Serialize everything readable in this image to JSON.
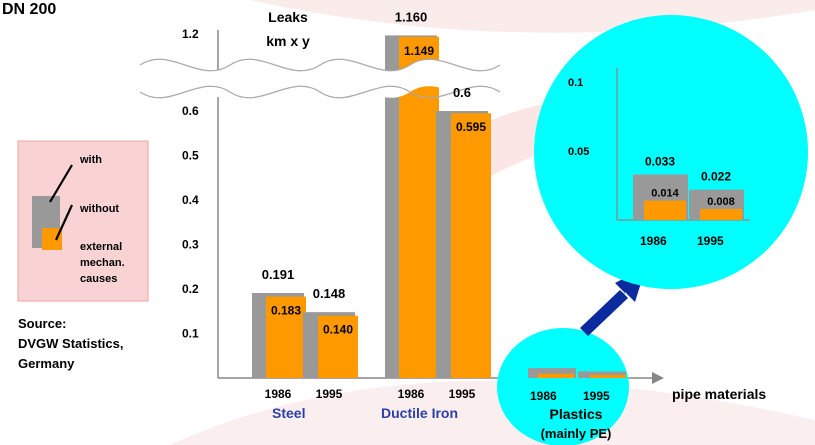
{
  "page_title": "DN 200",
  "y_axis_label_line1": "Leaks",
  "y_axis_label_line2": "km x y",
  "x_axis_label": "pipe materials",
  "legend": {
    "with_label": "with",
    "without_label": "without",
    "causes_line1": "external",
    "causes_line2": "mechan.",
    "causes_line3": "causes"
  },
  "source": {
    "line1": "Source:",
    "line2": "DVGW Statistics,",
    "line3": "Germany"
  },
  "colors": {
    "with_bar": "#999999",
    "without_bar": "#ff9900",
    "highlight_circle": "#00ffff",
    "arrow": "#0a2a9e",
    "material_label": "#2b3fa8",
    "legend_box": "#f9d3d3"
  },
  "chart_data": [
    {
      "type": "bar",
      "title": "",
      "xlabel": "pipe materials",
      "ylabel": "Leaks km x y",
      "ylim": [
        0,
        1.2
      ],
      "axis_break": [
        0.6,
        1.2
      ],
      "yticks": [
        "0.1",
        "0.2",
        "0.3",
        "0.4",
        "0.5",
        "0.6",
        "1.2"
      ],
      "groups": [
        {
          "material": "Steel",
          "categories": [
            "1986",
            "1995"
          ],
          "series": [
            {
              "name": "with",
              "values": [
                0.191,
                0.148
              ]
            },
            {
              "name": "without",
              "values": [
                0.183,
                0.14
              ]
            }
          ],
          "labels_with": [
            "0.191",
            "0.148"
          ],
          "labels_without": [
            "0.183",
            "0.140"
          ]
        },
        {
          "material": "Ductile Iron",
          "categories": [
            "1986",
            "1995"
          ],
          "series": [
            {
              "name": "with",
              "values": [
                1.16,
                0.6
              ]
            },
            {
              "name": "without",
              "values": [
                1.149,
                0.595
              ]
            }
          ],
          "labels_with": [
            "1.160",
            "0.6"
          ],
          "labels_without": [
            "1.149",
            "0.595"
          ]
        },
        {
          "material_line1": "Plastics",
          "material_line2": "(mainly PE)",
          "categories": [
            "1986",
            "1995"
          ],
          "series": [
            {
              "name": "with",
              "values": [
                0.033,
                0.022
              ]
            },
            {
              "name": "without",
              "values": [
                0.014,
                0.008
              ]
            }
          ]
        }
      ]
    },
    {
      "type": "bar",
      "title": "",
      "ylim": [
        0,
        0.1
      ],
      "yticks": [
        "0.05",
        "0.1"
      ],
      "categories": [
        "1986",
        "1995"
      ],
      "series": [
        {
          "name": "with",
          "values": [
            0.033,
            0.022
          ]
        },
        {
          "name": "without",
          "values": [
            0.014,
            0.008
          ]
        }
      ],
      "labels_with": [
        "0.033",
        "0.022"
      ],
      "labels_without": [
        "0.014",
        "0.008"
      ]
    }
  ]
}
